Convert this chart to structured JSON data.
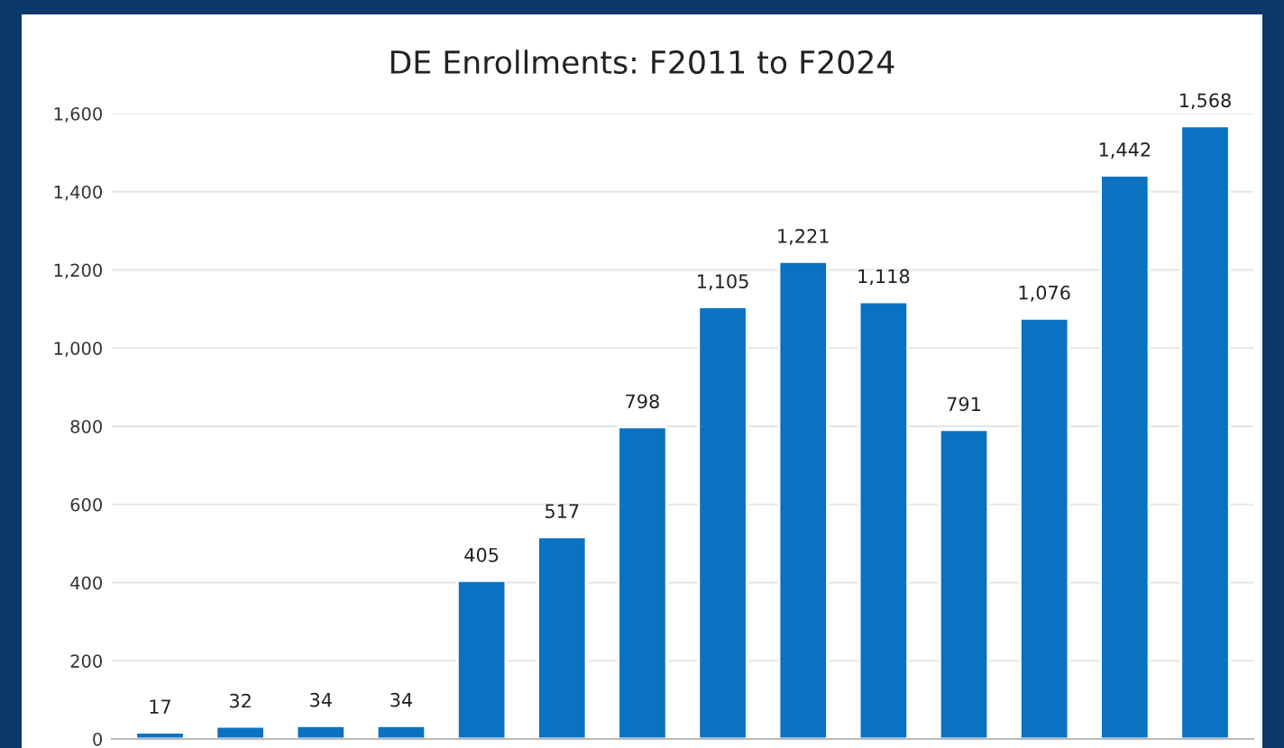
{
  "chart_data": {
    "type": "bar",
    "title": "DE Enrollments: F2011 to F2024",
    "categories": [
      null,
      null,
      null,
      null,
      null,
      null,
      null,
      null,
      null,
      null,
      null,
      null,
      null,
      null
    ],
    "values": [
      17,
      32,
      34,
      34,
      405,
      517,
      798,
      1105,
      1221,
      1118,
      791,
      1076,
      1442,
      1568
    ],
    "value_labels": [
      "17",
      "32",
      "34",
      "34",
      "405",
      "517",
      "798",
      "1,105",
      "1,221",
      "1,118",
      "791",
      "1,076",
      "1,442",
      "1,568"
    ],
    "color": "#0b72c2",
    "ylim": [
      0,
      1600
    ],
    "yticks": [
      {
        "value": 0,
        "label": "0"
      },
      {
        "value": 200,
        "label": "200"
      },
      {
        "value": 400,
        "label": "400"
      },
      {
        "value": 600,
        "label": "600"
      },
      {
        "value": 800,
        "label": "800"
      },
      {
        "value": 1000,
        "label": "1,000"
      },
      {
        "value": 1200,
        "label": "1,200"
      },
      {
        "value": 1400,
        "label": "1,400"
      },
      {
        "value": 1600,
        "label": "1,600"
      }
    ],
    "grid": "y",
    "tick_labels": "y"
  }
}
